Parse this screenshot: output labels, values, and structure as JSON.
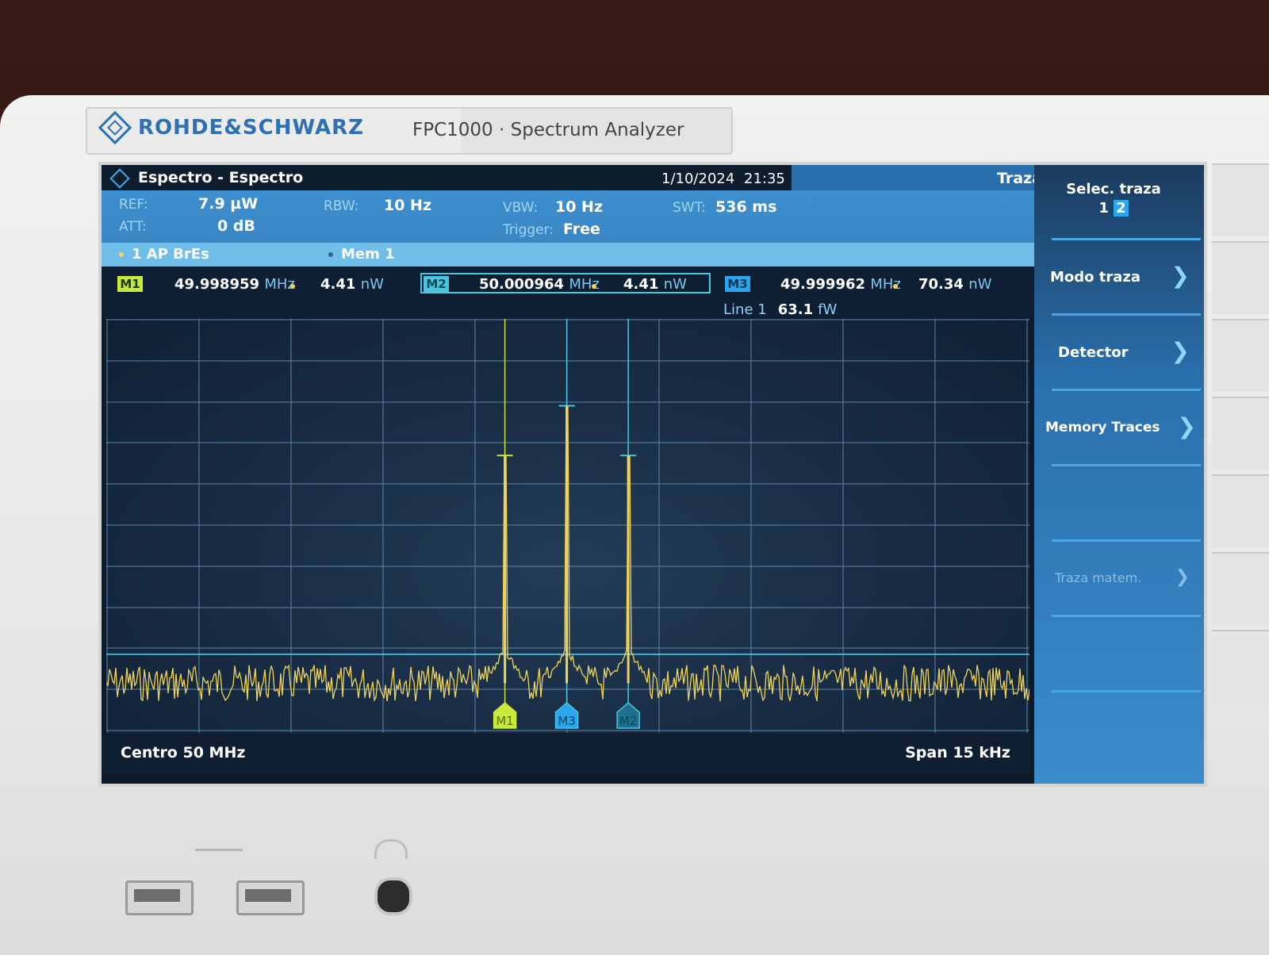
{
  "device": {
    "brand": "ROHDE&SCHWARZ",
    "model": "FPC1000 · Spectrum Analyzer"
  },
  "header": {
    "title": "Espectro - Espectro",
    "date": "1/10/2024",
    "time": "21:35",
    "panel_title": "Traza"
  },
  "params": {
    "ref_label": "REF:",
    "ref_value": "7.9 µW",
    "att_label": "ATT:",
    "att_value": "0 dB",
    "rbw_label": "RBW:",
    "rbw_value": "10 Hz",
    "vbw_label": "VBW:",
    "vbw_value": "10 Hz",
    "trigger_label": "Trigger:",
    "trigger_value": "Free",
    "swt_label": "SWT:",
    "swt_value": "536 ms"
  },
  "traces": {
    "trace1": "1 AP  BrEs",
    "mem": "Mem 1"
  },
  "markers": [
    {
      "label": "M1",
      "freq": "49.998959",
      "freq_unit": "MHz",
      "power": "4.41",
      "power_unit": "nW"
    },
    {
      "label": "M2",
      "freq": "50.000964",
      "freq_unit": "MHz",
      "power": "4.41",
      "power_unit": "nW"
    },
    {
      "label": "M3",
      "freq": "49.999962",
      "freq_unit": "MHz",
      "power": "70.34",
      "power_unit": "nW"
    }
  ],
  "line": {
    "label": "Line 1",
    "value": "63.1",
    "unit": "fW"
  },
  "footer": {
    "center": "Centro 50 MHz",
    "span": "Span 15 kHz"
  },
  "softkeys": {
    "selec_traza": "Selec. traza",
    "selec_traza_options": [
      "1",
      "2"
    ],
    "modo_traza": "Modo traza",
    "detector": "Detector",
    "memory_traces": "Memory Traces",
    "traza_matem": "Traza matem."
  },
  "colors": {
    "trace_yellow": "#f2d35a",
    "marker_cyan": "#48c5e0",
    "grid": "#5a86ad",
    "accent_blue": "#2a70ad"
  },
  "spectrum": {
    "noise_floor_fraction": 0.88,
    "line_level_fraction": 0.81,
    "peaks": [
      {
        "marker": "M1",
        "x_fraction": 0.4318,
        "level_fraction": 0.33
      },
      {
        "marker": "M3",
        "x_fraction": 0.4988,
        "level_fraction": 0.21
      },
      {
        "marker": "M2",
        "x_fraction": 0.5654,
        "level_fraction": 0.33
      }
    ]
  }
}
